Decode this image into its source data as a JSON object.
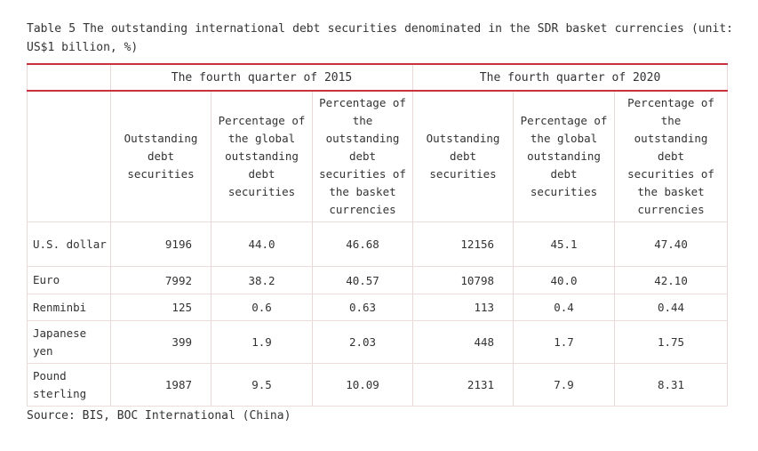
{
  "caption": "Table 5 The outstanding international debt securities denominated in the SDR basket currencies (unit: US$1 billion, %)",
  "periods": [
    "The fourth quarter of 2015",
    "The fourth quarter of 2020"
  ],
  "column_headers": [
    "Outstanding debt securities",
    "Percentage of the global outstanding debt securities",
    "Percentage of the outstanding debt securities of the basket currencies",
    "Outstanding debt securities",
    "Percentage of the global outstanding debt securities",
    "Percentage of the outstanding debt securities of the basket currencies"
  ],
  "rows": [
    {
      "currency": "U.S. dollar",
      "values": [
        "9196",
        "44.0",
        "46.68",
        "12156",
        "45.1",
        "47.40"
      ]
    },
    {
      "currency": "Euro",
      "values": [
        "7992",
        "38.2",
        "40.57",
        "10798",
        "40.0",
        "42.10"
      ]
    },
    {
      "currency": "Renminbi",
      "values": [
        "125",
        "0.6",
        "0.63",
        "113",
        "0.4",
        "0.44"
      ]
    },
    {
      "currency": "Japanese yen",
      "values": [
        "399",
        "1.9",
        "2.03",
        "448",
        "1.7",
        "1.75"
      ]
    },
    {
      "currency": "Pound sterling",
      "values": [
        "1987",
        "9.5",
        "10.09",
        "2131",
        "7.9",
        "8.31"
      ]
    }
  ],
  "source": "Source: BIS, BOC International (China)"
}
